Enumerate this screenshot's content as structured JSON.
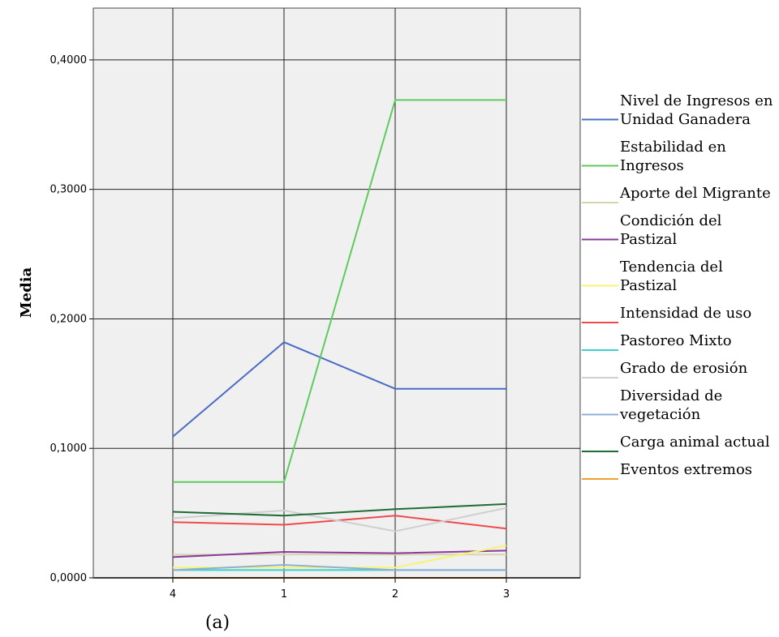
{
  "chart_data": {
    "type": "line",
    "categories": [
      "4",
      "1",
      "2",
      "3"
    ],
    "ylabel": "Media",
    "xlabel": "",
    "caption": "(a)",
    "ylim": [
      0,
      0.44
    ],
    "yticks": [
      {
        "value": 0.0,
        "label": "0,0000"
      },
      {
        "value": 0.1,
        "label": "0,1000"
      },
      {
        "value": 0.2,
        "label": "0,2000"
      },
      {
        "value": 0.3,
        "label": "0,3000"
      },
      {
        "value": 0.4,
        "label": "0,4000"
      }
    ],
    "grid": true,
    "legend_position": "right",
    "series": [
      {
        "name": "Nivel de Ingresos en Unidad Ganadera",
        "legend_lines": [
          "Nivel de Ingresos en",
          "Unidad Ganadera"
        ],
        "color": "#4a6cc4",
        "values": [
          0.109,
          0.182,
          0.146,
          0.146
        ]
      },
      {
        "name": "Estabilidad en Ingresos",
        "legend_lines": [
          "Estabilidad en",
          "Ingresos"
        ],
        "color": "#5ecb5e",
        "values": [
          0.074,
          0.074,
          0.369,
          0.369
        ]
      },
      {
        "name": "Aporte del Migrante",
        "legend_lines": [
          "Aporte del Migrante"
        ],
        "color": "#d9d4b0",
        "values": [
          0.018,
          0.018,
          0.018,
          0.018
        ]
      },
      {
        "name": "Condición del Pastizal",
        "legend_lines": [
          "Condición del",
          "Pastizal"
        ],
        "color": "#8a3a9a",
        "values": [
          0.016,
          0.02,
          0.019,
          0.021
        ]
      },
      {
        "name": "Tendencia del Pastizal",
        "legend_lines": [
          "Tendencia del",
          "Pastizal"
        ],
        "color": "#f5f570",
        "values": [
          0.008,
          0.008,
          0.008,
          0.025
        ]
      },
      {
        "name": "Intensidad de uso",
        "legend_lines": [
          "Intensidad de uso"
        ],
        "color": "#f04a4a",
        "values": [
          0.043,
          0.041,
          0.048,
          0.038
        ]
      },
      {
        "name": "Pastoreo Mixto",
        "legend_lines": [
          "Pastoreo Mixto"
        ],
        "color": "#3ccfcf",
        "values": [
          0.006,
          0.006,
          0.006,
          0.006
        ]
      },
      {
        "name": "Grado de erosión",
        "legend_lines": [
          "Grado de erosión"
        ],
        "color": "#cfcfcf",
        "values": [
          0.046,
          0.052,
          0.036,
          0.054
        ]
      },
      {
        "name": "Diversidad de vegetación",
        "legend_lines": [
          "Diversidad de",
          "vegetación"
        ],
        "color": "#8fb0d6",
        "values": [
          0.006,
          0.01,
          0.006,
          0.006
        ]
      },
      {
        "name": "Carga animal actual",
        "legend_lines": [
          "Carga animal actual"
        ],
        "color": "#1f6b35",
        "values": [
          0.051,
          0.048,
          0.053,
          0.057
        ]
      },
      {
        "name": "Eventos extremos",
        "legend_lines": [
          "Eventos extremos"
        ],
        "color": "#f0a030",
        "values": [
          0.0,
          0.0,
          0.0,
          0.0
        ]
      }
    ]
  }
}
